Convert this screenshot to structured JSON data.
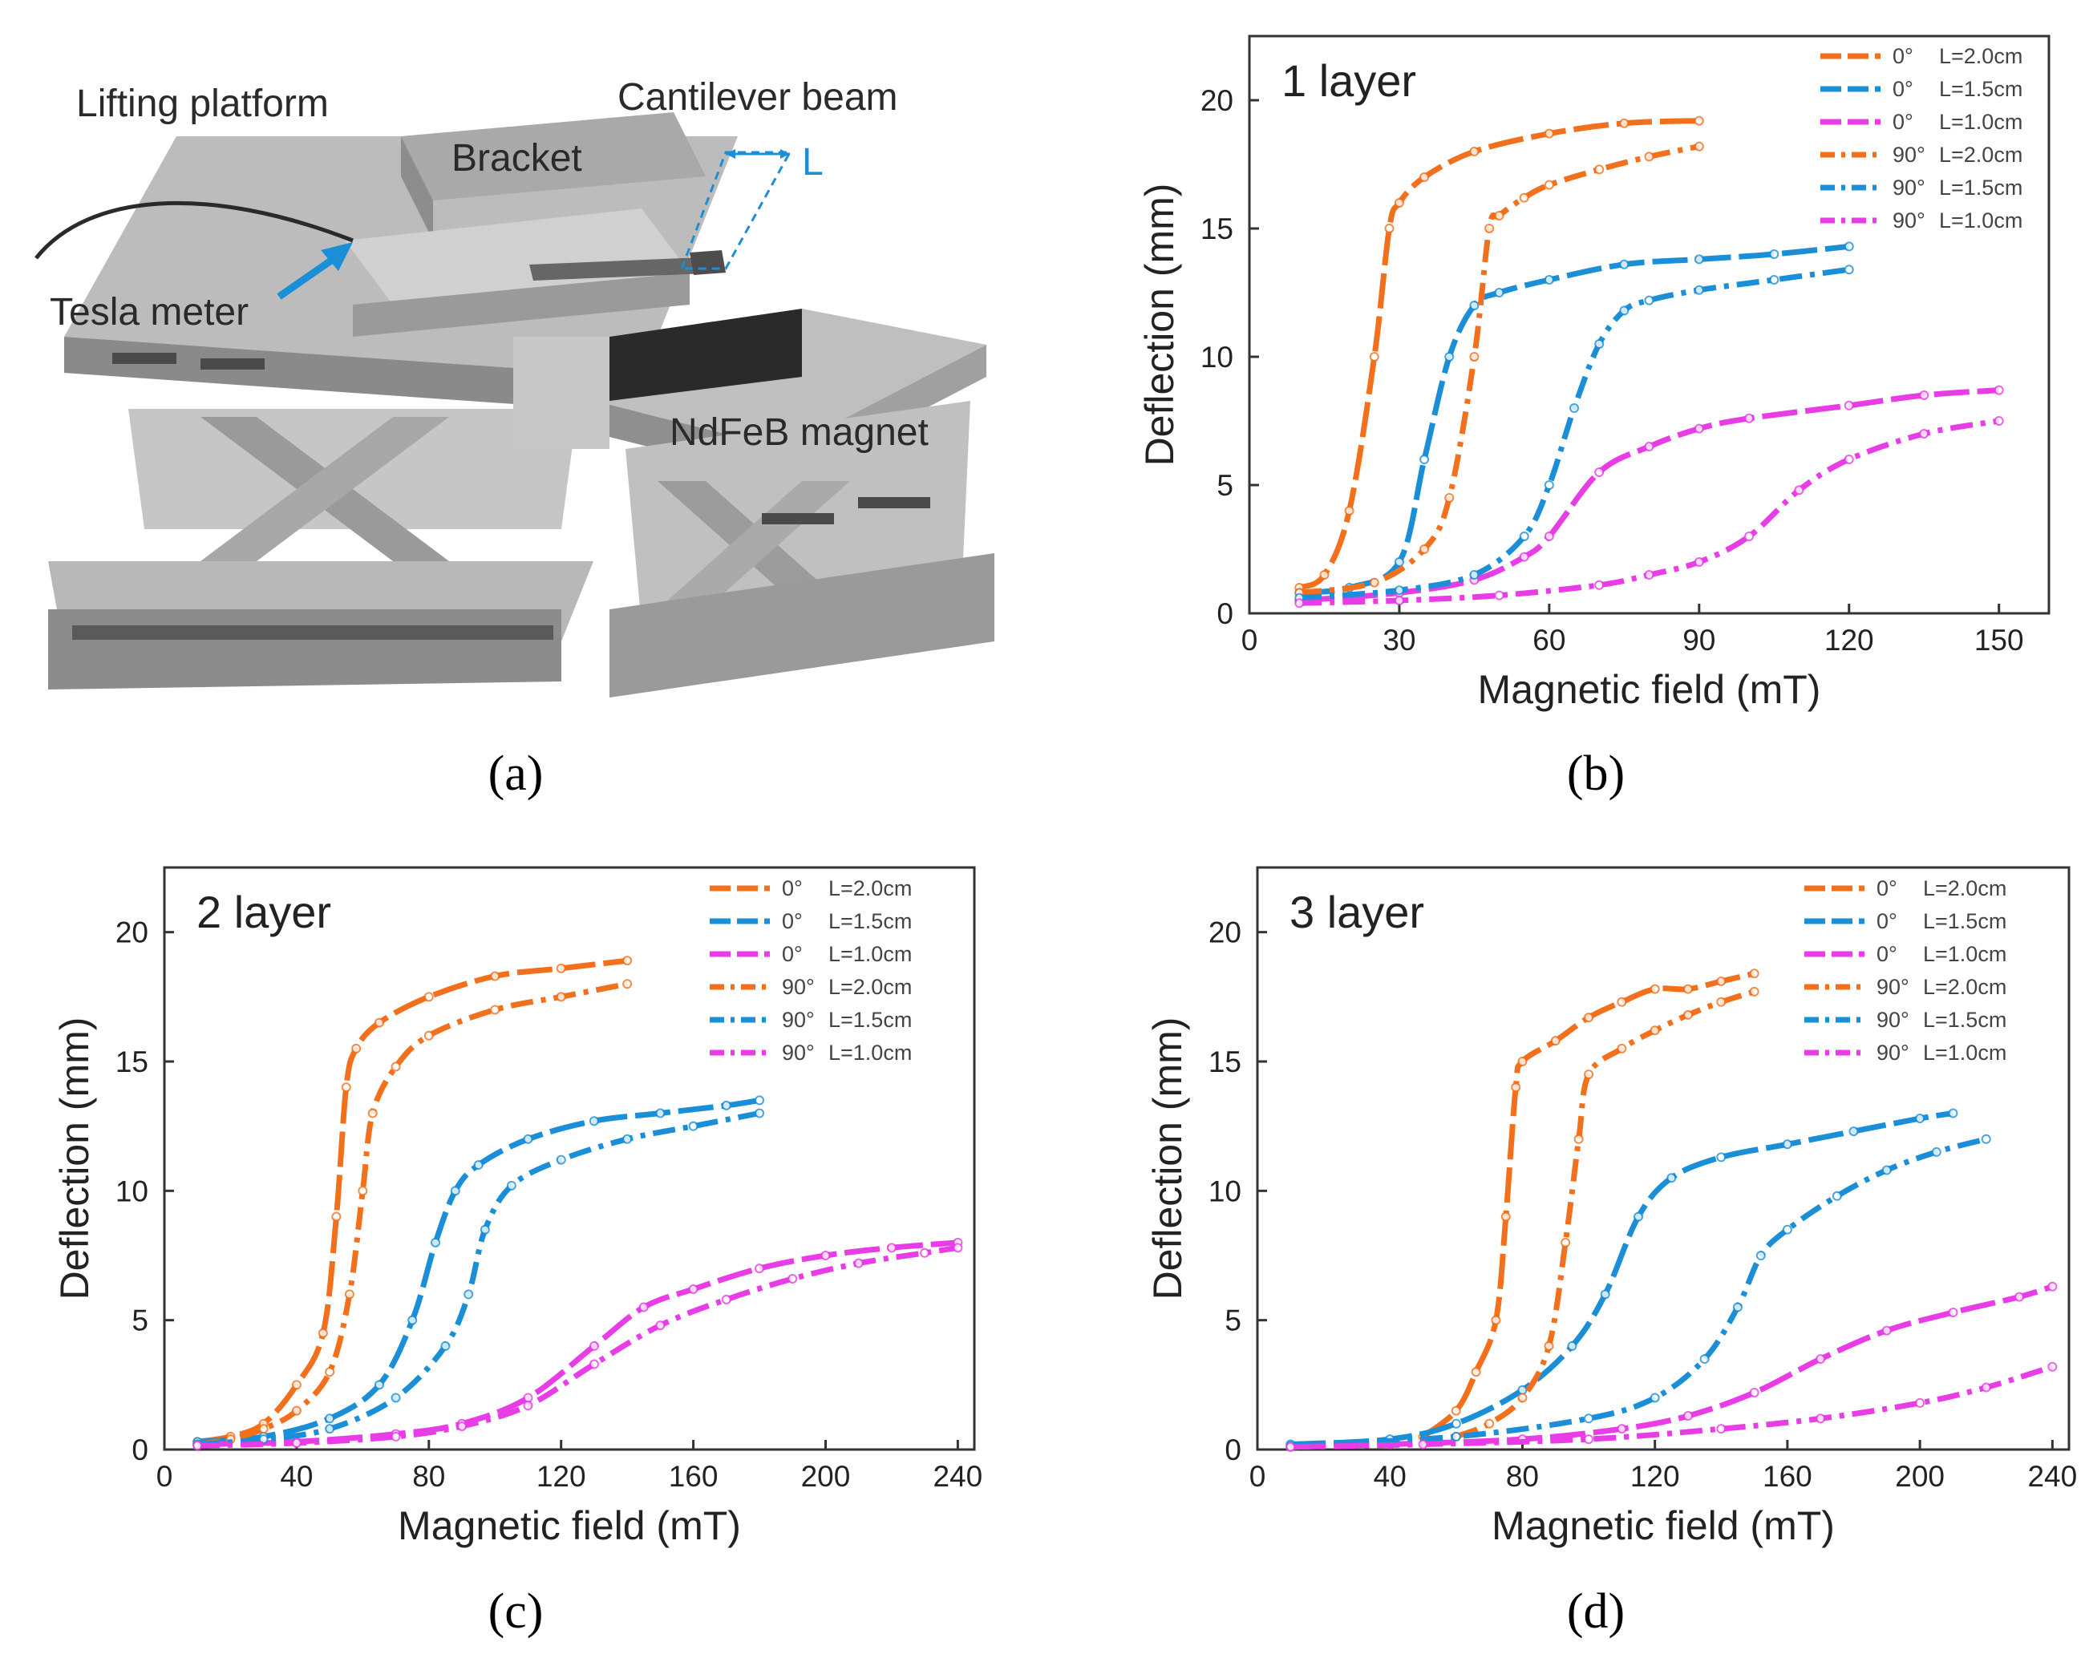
{
  "panel_a": {
    "labels": {
      "lifting_platform": "Lifting platform",
      "cantilever_beam": "Cantilever beam",
      "bracket": "Bracket",
      "length": "L",
      "tesla_meter": "Tesla meter",
      "magnet": "NdFeB magnet"
    },
    "caption": "(a)"
  },
  "colors": {
    "orange": "#f2701c",
    "blue": "#1a8fd8",
    "magenta": "#e83ce6",
    "text": "#222222"
  },
  "chart_data": [
    {
      "id": "b",
      "type": "line",
      "title": "1 layer",
      "xlabel": "Magnetic field (mT)",
      "ylabel": "Deflection (mm)",
      "xlim": [
        0,
        160
      ],
      "ylim": [
        0,
        22.5
      ],
      "xticks": [
        0,
        30,
        60,
        90,
        120,
        150
      ],
      "yticks": [
        0,
        5,
        10,
        15,
        20
      ],
      "caption": "(b)",
      "series": [
        {
          "name": "0°",
          "length": "L=2.0cm",
          "color": "orange",
          "style": "dash-long",
          "x": [
            10,
            15,
            20,
            25,
            28,
            30,
            35,
            45,
            60,
            75,
            90
          ],
          "y": [
            1.0,
            1.5,
            4,
            10,
            15,
            16,
            17,
            18,
            18.7,
            19.1,
            19.2
          ]
        },
        {
          "name": "0°",
          "length": "L=1.5cm",
          "color": "blue",
          "style": "dash-long",
          "x": [
            10,
            20,
            30,
            35,
            40,
            45,
            50,
            60,
            75,
            90,
            105,
            120
          ],
          "y": [
            0.8,
            1.0,
            2,
            6,
            10,
            12,
            12.5,
            13,
            13.6,
            13.8,
            14,
            14.3
          ]
        },
        {
          "name": "0°",
          "length": "L=1.0cm",
          "color": "magenta",
          "style": "dash-long",
          "x": [
            10,
            30,
            45,
            55,
            60,
            70,
            80,
            90,
            100,
            120,
            135,
            150
          ],
          "y": [
            0.5,
            0.8,
            1.3,
            2.2,
            3,
            5.5,
            6.5,
            7.2,
            7.6,
            8.1,
            8.5,
            8.7
          ]
        },
        {
          "name": "90°",
          "length": "L=2.0cm",
          "color": "orange",
          "style": "dash-dot",
          "x": [
            10,
            25,
            35,
            40,
            45,
            48,
            50,
            55,
            60,
            70,
            80,
            90
          ],
          "y": [
            0.8,
            1.2,
            2.5,
            4.5,
            10,
            15,
            15.5,
            16.2,
            16.7,
            17.3,
            17.8,
            18.2
          ]
        },
        {
          "name": "90°",
          "length": "L=1.5cm",
          "color": "blue",
          "style": "dash-dot",
          "x": [
            10,
            30,
            45,
            55,
            60,
            65,
            70,
            75,
            80,
            90,
            105,
            120
          ],
          "y": [
            0.6,
            0.9,
            1.5,
            3,
            5,
            8,
            10.5,
            11.8,
            12.2,
            12.6,
            13,
            13.4
          ]
        },
        {
          "name": "90°",
          "length": "L=1.0cm",
          "color": "magenta",
          "style": "dash-dot",
          "x": [
            10,
            30,
            50,
            70,
            80,
            90,
            100,
            110,
            120,
            135,
            150
          ],
          "y": [
            0.4,
            0.5,
            0.7,
            1.1,
            1.5,
            2,
            3,
            4.8,
            6,
            7,
            7.5
          ]
        }
      ]
    },
    {
      "id": "c",
      "type": "line",
      "title": "2 layer",
      "xlabel": "Magnetic field (mT)",
      "ylabel": "Deflection (mm)",
      "xlim": [
        0,
        245
      ],
      "ylim": [
        0,
        22.5
      ],
      "xticks": [
        0,
        40,
        80,
        120,
        160,
        200,
        240
      ],
      "yticks": [
        0,
        5,
        10,
        15,
        20
      ],
      "caption": "(c)",
      "series": [
        {
          "name": "0°",
          "length": "L=2.0cm",
          "color": "orange",
          "style": "dash-long",
          "x": [
            10,
            20,
            30,
            40,
            48,
            52,
            55,
            58,
            65,
            80,
            100,
            120,
            140
          ],
          "y": [
            0.3,
            0.5,
            1,
            2.5,
            4.5,
            9,
            14,
            15.5,
            16.5,
            17.5,
            18.3,
            18.6,
            18.9
          ]
        },
        {
          "name": "0°",
          "length": "L=1.5cm",
          "color": "blue",
          "style": "dash-long",
          "x": [
            10,
            30,
            50,
            65,
            75,
            82,
            88,
            95,
            110,
            130,
            150,
            170,
            180
          ],
          "y": [
            0.3,
            0.5,
            1.2,
            2.5,
            5,
            8,
            10,
            11,
            12,
            12.7,
            13,
            13.3,
            13.5
          ]
        },
        {
          "name": "0°",
          "length": "L=1.0cm",
          "color": "magenta",
          "style": "dash-long",
          "x": [
            10,
            40,
            70,
            90,
            110,
            130,
            145,
            160,
            180,
            200,
            220,
            240
          ],
          "y": [
            0.2,
            0.3,
            0.6,
            1,
            2,
            4,
            5.5,
            6.2,
            7,
            7.5,
            7.8,
            8
          ]
        },
        {
          "name": "90°",
          "length": "L=2.0cm",
          "color": "orange",
          "style": "dash-dot",
          "x": [
            10,
            20,
            30,
            40,
            50,
            56,
            60,
            63,
            70,
            80,
            100,
            120,
            140
          ],
          "y": [
            0.2,
            0.4,
            0.8,
            1.5,
            3,
            6,
            10,
            13,
            14.8,
            16,
            17,
            17.5,
            18
          ]
        },
        {
          "name": "90°",
          "length": "L=1.5cm",
          "color": "blue",
          "style": "dash-dot",
          "x": [
            10,
            30,
            50,
            70,
            85,
            92,
            97,
            105,
            120,
            140,
            160,
            180
          ],
          "y": [
            0.2,
            0.4,
            0.8,
            2,
            4,
            6,
            8.5,
            10.2,
            11.2,
            12,
            12.5,
            13
          ]
        },
        {
          "name": "90°",
          "length": "L=1.0cm",
          "color": "magenta",
          "style": "dash-dot",
          "x": [
            10,
            40,
            70,
            90,
            110,
            130,
            150,
            170,
            190,
            210,
            230,
            240
          ],
          "y": [
            0.15,
            0.25,
            0.5,
            0.9,
            1.7,
            3.3,
            4.8,
            5.8,
            6.6,
            7.2,
            7.6,
            7.8
          ]
        }
      ]
    },
    {
      "id": "d",
      "type": "line",
      "title": "3 layer",
      "xlabel": "Magnetic field (mT)",
      "ylabel": "Deflection (mm)",
      "xlim": [
        0,
        245
      ],
      "ylim": [
        0,
        22.5
      ],
      "xticks": [
        0,
        40,
        80,
        120,
        160,
        200,
        240
      ],
      "yticks": [
        0,
        5,
        10,
        15,
        20
      ],
      "caption": "(d)",
      "series": [
        {
          "name": "0°",
          "length": "L=2.0cm",
          "color": "orange",
          "style": "dash-long",
          "x": [
            50,
            60,
            66,
            72,
            75,
            78,
            80,
            90,
            100,
            110,
            120,
            130,
            140,
            150
          ],
          "y": [
            0.5,
            1.5,
            3,
            5,
            9,
            14,
            15,
            15.8,
            16.7,
            17.3,
            17.8,
            17.8,
            18.1,
            18.4
          ]
        },
        {
          "name": "0°",
          "length": "L=1.5cm",
          "color": "blue",
          "style": "dash-long",
          "x": [
            10,
            40,
            60,
            80,
            95,
            105,
            115,
            125,
            140,
            160,
            180,
            200,
            210
          ],
          "y": [
            0.2,
            0.4,
            1,
            2.3,
            4,
            6,
            9,
            10.5,
            11.3,
            11.8,
            12.3,
            12.8,
            13
          ]
        },
        {
          "name": "0°",
          "length": "L=1.0cm",
          "color": "magenta",
          "style": "dash-long",
          "x": [
            10,
            40,
            80,
            110,
            130,
            150,
            170,
            190,
            210,
            230,
            240
          ],
          "y": [
            0.1,
            0.2,
            0.4,
            0.8,
            1.3,
            2.2,
            3.5,
            4.6,
            5.3,
            5.9,
            6.3
          ]
        },
        {
          "name": "90°",
          "length": "L=2.0cm",
          "color": "orange",
          "style": "dash-dot",
          "x": [
            60,
            70,
            80,
            88,
            93,
            97,
            100,
            110,
            120,
            130,
            140,
            150
          ],
          "y": [
            0.5,
            1,
            2,
            4,
            8,
            12,
            14.5,
            15.5,
            16.2,
            16.8,
            17.3,
            17.7
          ]
        },
        {
          "name": "90°",
          "length": "L=1.5cm",
          "color": "blue",
          "style": "dash-dot",
          "x": [
            10,
            60,
            100,
            120,
            135,
            145,
            152,
            160,
            175,
            190,
            205,
            220
          ],
          "y": [
            0.15,
            0.5,
            1.2,
            2,
            3.5,
            5.5,
            7.5,
            8.5,
            9.8,
            10.8,
            11.5,
            12
          ]
        },
        {
          "name": "90°",
          "length": "L=1.0cm",
          "color": "magenta",
          "style": "dash-dot",
          "x": [
            10,
            50,
            100,
            140,
            170,
            200,
            220,
            240
          ],
          "y": [
            0.1,
            0.2,
            0.4,
            0.8,
            1.2,
            1.8,
            2.4,
            3.2
          ]
        }
      ]
    }
  ]
}
